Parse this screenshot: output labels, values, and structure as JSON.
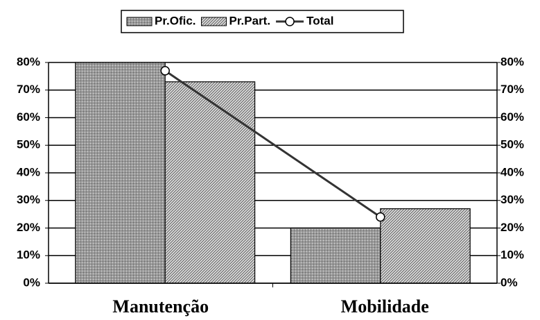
{
  "chart_data": {
    "type": "bar",
    "categories": [
      "Manutenção",
      "Mobilidade"
    ],
    "series": [
      {
        "name": "Pr.Ofic.",
        "color": "#9a9a9a",
        "values": [
          80,
          20
        ]
      },
      {
        "name": "Pr.Part.",
        "color": "#b0b0b0",
        "values": [
          73,
          27
        ]
      },
      {
        "name": "Total",
        "type": "line",
        "color": "#333333",
        "values": [
          77,
          24
        ]
      }
    ],
    "ylim": [
      0,
      80
    ],
    "yticks": [
      {
        "value": 0,
        "label": "0%"
      },
      {
        "value": 10,
        "label": "10%"
      },
      {
        "value": 20,
        "label": "20%"
      },
      {
        "value": 30,
        "label": "30%"
      },
      {
        "value": 40,
        "label": "40%"
      },
      {
        "value": 50,
        "label": "50%"
      },
      {
        "value": 60,
        "label": "60%"
      },
      {
        "value": 70,
        "label": "70%"
      },
      {
        "value": 80,
        "label": "80%"
      }
    ],
    "y2lim": [
      0,
      80
    ],
    "y2ticks": [
      {
        "value": 0,
        "label": "0%"
      },
      {
        "value": 10,
        "label": "10%"
      },
      {
        "value": 20,
        "label": "20%"
      },
      {
        "value": 30,
        "label": "30%"
      },
      {
        "value": 40,
        "label": "40%"
      },
      {
        "value": 50,
        "label": "50%"
      },
      {
        "value": 60,
        "label": "60%"
      },
      {
        "value": 70,
        "label": "70%"
      },
      {
        "value": 80,
        "label": "80%"
      }
    ],
    "grid": true,
    "legend": "top"
  }
}
